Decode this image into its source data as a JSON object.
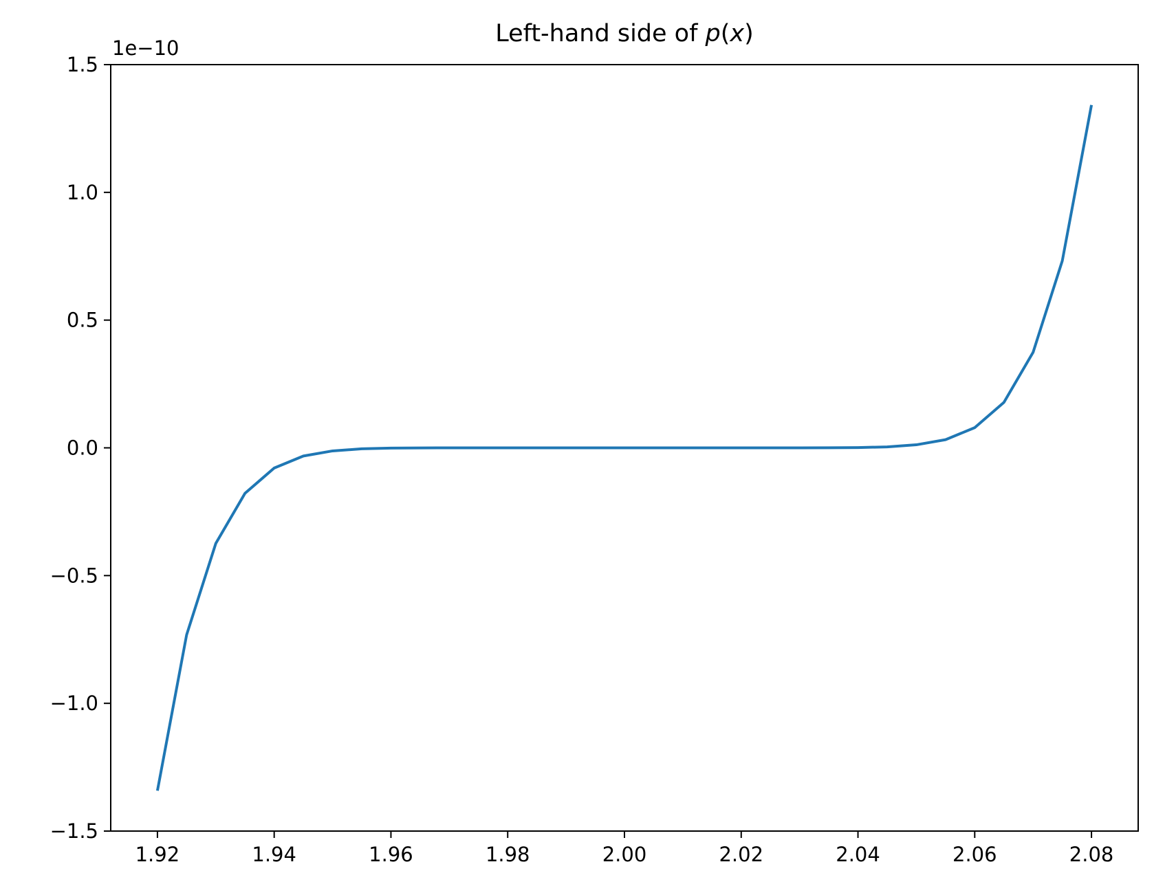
{
  "chart_data": {
    "type": "line",
    "title": "Left-hand side of p(x)",
    "title_parts": {
      "prefix": "Left-hand side of ",
      "func": "p",
      "open": "(",
      "var": "x",
      "close": ")"
    },
    "xlabel": "",
    "ylabel": "",
    "y_offset_label": "1e−10",
    "y_scale_factor": 1e-10,
    "xlim": [
      1.912,
      2.088
    ],
    "ylim": [
      -1.5,
      1.5
    ],
    "x_ticks": [
      1.92,
      1.94,
      1.96,
      1.98,
      2.0,
      2.02,
      2.04,
      2.06,
      2.08
    ],
    "x_tick_labels": [
      "1.92",
      "1.94",
      "1.96",
      "1.98",
      "2.00",
      "2.02",
      "2.04",
      "2.06",
      "2.08"
    ],
    "y_ticks": [
      -1.5,
      -1.0,
      -0.5,
      0.0,
      0.5,
      1.0,
      1.5
    ],
    "y_tick_labels": [
      "−1.5",
      "−1.0",
      "−0.5",
      "0.0",
      "0.5",
      "1.0",
      "1.5"
    ],
    "grid": false,
    "line_color": "#1f77b4",
    "series": [
      {
        "x": [
          1.92,
          1.925,
          1.93,
          1.935,
          1.94,
          1.945,
          1.95,
          1.955,
          1.96,
          1.965,
          1.97,
          1.975,
          1.98,
          1.985,
          1.99,
          1.995,
          2.0,
          2.005,
          2.01,
          2.015,
          2.02,
          2.025,
          2.03,
          2.035,
          2.04,
          2.045,
          2.05,
          2.055,
          2.06,
          2.065,
          2.07,
          2.075,
          2.08
        ],
        "y": [
          -1.342,
          -0.732,
          -0.374,
          -0.178,
          -0.079,
          -0.032,
          -0.012,
          -0.0038,
          -0.00105,
          -0.00023,
          -3.84e-05,
          -3.9e-06,
          -1.7e-07,
          0,
          0,
          0,
          0,
          0,
          0,
          0,
          1.7e-07,
          3.9e-06,
          3.84e-05,
          0.00023,
          0.00105,
          0.0038,
          0.012,
          0.032,
          0.079,
          0.178,
          0.374,
          0.732,
          1.342
        ]
      }
    ]
  }
}
